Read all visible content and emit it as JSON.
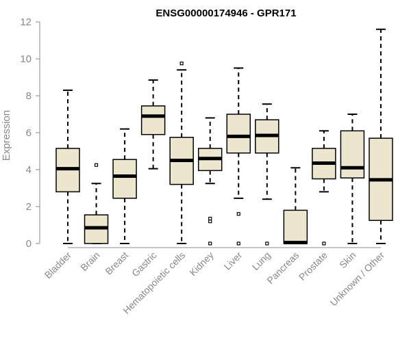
{
  "chart_data": {
    "type": "box",
    "title": "ENSG00000174946 - GPR171",
    "xlabel": "",
    "ylabel": "Expression",
    "ylim": [
      0,
      12
    ],
    "yticks": [
      0,
      2,
      4,
      6,
      8,
      10,
      12
    ],
    "categories": [
      "Bladder",
      "Brain",
      "Breast",
      "Gastric",
      "Hematopoietic cells",
      "Kidney",
      "Liver",
      "Lung",
      "Pancreas",
      "Prostate",
      "Skin",
      "Unknown / Other"
    ],
    "boxes": [
      {
        "min": 0.0,
        "q1": 2.8,
        "median": 4.05,
        "q3": 5.15,
        "max": 8.3,
        "outliers": []
      },
      {
        "min": 0.0,
        "q1": 0.0,
        "median": 0.85,
        "q3": 1.55,
        "max": 3.25,
        "outliers": [
          4.25
        ]
      },
      {
        "min": 0.0,
        "q1": 2.45,
        "median": 3.65,
        "q3": 4.55,
        "max": 6.2,
        "outliers": []
      },
      {
        "min": 4.05,
        "q1": 5.9,
        "median": 6.9,
        "q3": 7.45,
        "max": 8.85,
        "outliers": []
      },
      {
        "min": 0.0,
        "q1": 3.2,
        "median": 4.5,
        "q3": 5.75,
        "max": 9.4,
        "outliers": [
          9.75
        ]
      },
      {
        "min": 3.25,
        "q1": 3.95,
        "median": 4.6,
        "q3": 5.15,
        "max": 6.8,
        "outliers": [
          0.0,
          1.2,
          1.35
        ]
      },
      {
        "min": 2.45,
        "q1": 4.9,
        "median": 5.8,
        "q3": 7.0,
        "max": 9.5,
        "outliers": [
          0.0,
          1.6
        ]
      },
      {
        "min": 2.4,
        "q1": 4.9,
        "median": 5.85,
        "q3": 6.7,
        "max": 7.55,
        "outliers": [
          0.0
        ]
      },
      {
        "min": 0.0,
        "q1": 0.0,
        "median": 0.05,
        "q3": 1.8,
        "max": 4.1,
        "outliers": []
      },
      {
        "min": 2.8,
        "q1": 3.5,
        "median": 4.35,
        "q3": 5.15,
        "max": 6.1,
        "outliers": [
          0.0
        ]
      },
      {
        "min": 0.0,
        "q1": 3.55,
        "median": 4.1,
        "q3": 6.1,
        "max": 7.0,
        "outliers": []
      },
      {
        "min": 0.0,
        "q1": 1.25,
        "median": 3.45,
        "q3": 5.7,
        "max": 11.6,
        "outliers": []
      }
    ]
  }
}
